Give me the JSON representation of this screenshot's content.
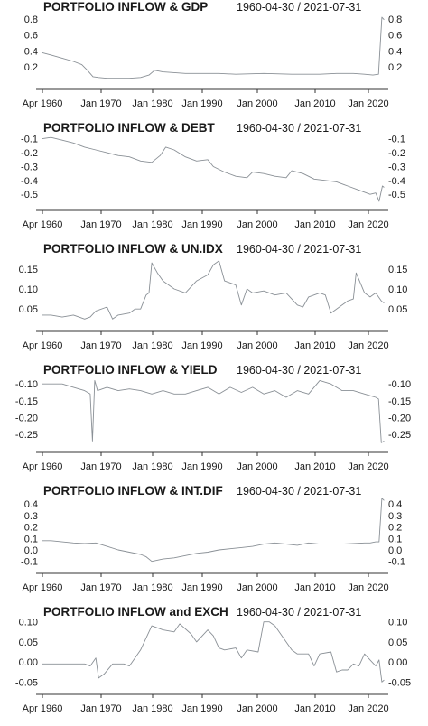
{
  "colors": {
    "series": "#8a9096",
    "axis": "#333333",
    "text": "#1a1a1a"
  },
  "chart_data": [
    {
      "type": "line",
      "title": "PORTFOLIO INFLOW & GDP",
      "date_range": "1960-04-30 / 2021-07-31",
      "x_ticks": [
        "Apr 1960",
        "Jan 1970",
        "Jan 1980",
        "Jan 1990",
        "Jan 2000",
        "Jan 2010",
        "Jan 2020"
      ],
      "y_ticks": [
        "0.8",
        "0.6",
        "0.4",
        "0.2"
      ],
      "ylim": [
        0.0,
        0.9
      ],
      "x": [
        1960.3,
        1962,
        1964,
        1966,
        1967.5,
        1968.5,
        1969.5,
        1970.5,
        1972,
        1974,
        1976,
        1978,
        1979.5,
        1980.5,
        1982,
        1984,
        1986,
        1988,
        1990,
        1992,
        1995,
        2000,
        2005,
        2010,
        2013,
        2016,
        2018,
        2019.5,
        2020.5,
        2021.1,
        2021.5
      ],
      "values": [
        0.38,
        0.35,
        0.31,
        0.27,
        0.23,
        0.16,
        0.08,
        0.07,
        0.06,
        0.06,
        0.06,
        0.07,
        0.1,
        0.16,
        0.14,
        0.13,
        0.12,
        0.12,
        0.12,
        0.12,
        0.11,
        0.12,
        0.11,
        0.11,
        0.12,
        0.12,
        0.11,
        0.1,
        0.11,
        0.82,
        0.79
      ]
    },
    {
      "type": "line",
      "title": "PORTFOLIO INFLOW & DEBT",
      "date_range": "1960-04-30 / 2021-07-31",
      "x_ticks": [
        "Apr 1960",
        "Jan 1970",
        "Jan 1980",
        "Jan 1990",
        "Jan 2000",
        "Jan 2010",
        "Jan 2020"
      ],
      "y_ticks": [
        "-0.1",
        "-0.2",
        "-0.3",
        "-0.4",
        "-0.5"
      ],
      "ylim": [
        -0.57,
        -0.05
      ],
      "x": [
        1960.3,
        1962,
        1964,
        1966,
        1968,
        1970,
        1972,
        1974,
        1976,
        1978,
        1980,
        1981.5,
        1982.5,
        1984,
        1986,
        1988,
        1990,
        1991,
        1993,
        1995,
        1997,
        1998,
        2000,
        2002,
        2004,
        2005,
        2007,
        2009,
        2011,
        2013,
        2015,
        2017,
        2019,
        2020,
        2020.6,
        2021.2,
        2021.5
      ],
      "values": [
        -0.1,
        -0.09,
        -0.11,
        -0.13,
        -0.16,
        -0.18,
        -0.2,
        -0.22,
        -0.23,
        -0.26,
        -0.27,
        -0.22,
        -0.16,
        -0.18,
        -0.23,
        -0.26,
        -0.25,
        -0.3,
        -0.34,
        -0.37,
        -0.38,
        -0.34,
        -0.35,
        -0.37,
        -0.38,
        -0.33,
        -0.35,
        -0.39,
        -0.4,
        -0.41,
        -0.44,
        -0.47,
        -0.5,
        -0.49,
        -0.55,
        -0.44,
        -0.45
      ]
    },
    {
      "type": "line",
      "title": "PORTFOLIO INFLOW & UN.IDX",
      "date_range": "1960-04-30 / 2021-07-31",
      "x_ticks": [
        "Apr 1960",
        "Jan 1970",
        "Jan 1980",
        "Jan 1990",
        "Jan 2000",
        "Jan 2010",
        "Jan 2020"
      ],
      "y_ticks": [
        "0.15",
        "0.10",
        "0.05"
      ],
      "ylim": [
        0.01,
        0.19
      ],
      "x": [
        1960.3,
        1962,
        1964,
        1966,
        1967,
        1968,
        1969,
        1970,
        1972,
        1973,
        1974,
        1976,
        1977,
        1978,
        1979,
        1979.5,
        1980,
        1981,
        1982,
        1984,
        1986,
        1988,
        1990,
        1991,
        1992,
        1993,
        1995,
        1996,
        1997,
        1998,
        2000,
        2002,
        2004,
        2006,
        2007,
        2008,
        2010,
        2011,
        2012,
        2014,
        2015,
        2016,
        2016.5,
        2018,
        2019,
        2020,
        2021,
        2021.5
      ],
      "values": [
        0.035,
        0.035,
        0.03,
        0.035,
        0.03,
        0.025,
        0.03,
        0.045,
        0.055,
        0.025,
        0.035,
        0.04,
        0.05,
        0.05,
        0.085,
        0.09,
        0.165,
        0.14,
        0.12,
        0.1,
        0.09,
        0.12,
        0.135,
        0.16,
        0.17,
        0.12,
        0.11,
        0.06,
        0.1,
        0.09,
        0.095,
        0.085,
        0.09,
        0.06,
        0.055,
        0.08,
        0.09,
        0.085,
        0.04,
        0.06,
        0.07,
        0.075,
        0.14,
        0.09,
        0.08,
        0.09,
        0.07,
        0.065
      ]
    },
    {
      "type": "line",
      "title": "PORTFOLIO INFLOW & YIELD",
      "date_range": "1960-04-30 / 2021-07-31",
      "x_ticks": [
        "Apr 1960",
        "Jan 1970",
        "Jan 1980",
        "Jan 1990",
        "Jan 2000",
        "Jan 2010",
        "Jan 2020"
      ],
      "y_ticks": [
        "-0.10",
        "-0.15",
        "-0.20",
        "-0.25"
      ],
      "ylim": [
        -0.285,
        -0.07
      ],
      "x": [
        1960.3,
        1962,
        1964,
        1966,
        1968,
        1969,
        1969.4,
        1969.8,
        1970.3,
        1972,
        1974,
        1976,
        1978,
        1980,
        1982,
        1984,
        1986,
        1988,
        1990,
        1992,
        1994,
        1996,
        1998,
        2000,
        2002,
        2004,
        2006,
        2008,
        2010,
        2012,
        2014,
        2016,
        2018,
        2019,
        2020,
        2020.5,
        2021,
        2021.5
      ],
      "values": [
        -0.1,
        -0.1,
        -0.1,
        -0.11,
        -0.12,
        -0.13,
        -0.27,
        -0.09,
        -0.12,
        -0.11,
        -0.12,
        -0.115,
        -0.12,
        -0.13,
        -0.12,
        -0.13,
        -0.13,
        -0.12,
        -0.11,
        -0.13,
        -0.11,
        -0.125,
        -0.11,
        -0.13,
        -0.12,
        -0.14,
        -0.12,
        -0.13,
        -0.09,
        -0.1,
        -0.12,
        -0.12,
        -0.13,
        -0.135,
        -0.14,
        -0.145,
        -0.275,
        -0.27
      ]
    },
    {
      "type": "line",
      "title": "PORTFOLIO INFLOW & INT.DIF",
      "date_range": "1960-04-30 / 2021-07-31",
      "x_ticks": [
        "Apr 1960",
        "Jan 1970",
        "Jan 1980",
        "Jan 1990",
        "Jan 2000",
        "Jan 2010",
        "Jan 2020"
      ],
      "y_ticks": [
        "0.4",
        "0.3",
        "0.2",
        "0.1",
        "0.0",
        "-0.1"
      ],
      "ylim": [
        -0.15,
        0.48
      ],
      "x": [
        1960.3,
        1962,
        1964,
        1966,
        1968,
        1970,
        1972,
        1974,
        1976,
        1978,
        1979,
        1980,
        1982,
        1984,
        1986,
        1988,
        1990,
        1992,
        1994,
        1996,
        1998,
        2000,
        2002,
        2004,
        2006,
        2008,
        2010,
        2012,
        2014,
        2016,
        2018,
        2019,
        2020,
        2020.6,
        2021.1,
        2021.5
      ],
      "values": [
        0.08,
        0.08,
        0.07,
        0.06,
        0.055,
        0.06,
        0.03,
        0.0,
        -0.02,
        -0.04,
        -0.06,
        -0.1,
        -0.08,
        -0.07,
        -0.05,
        -0.03,
        -0.02,
        0.0,
        0.01,
        0.02,
        0.03,
        0.05,
        0.06,
        0.05,
        0.04,
        0.06,
        0.05,
        0.05,
        0.05,
        0.055,
        0.06,
        0.06,
        0.07,
        0.07,
        0.45,
        0.43
      ]
    },
    {
      "type": "line",
      "title": "PORTFOLIO INFLOW and EXCH",
      "date_range": "1960-04-30 / 2021-07-31",
      "x_ticks": [
        "Apr 1960",
        "Jan 1970",
        "Jan 1980",
        "Jan 1990",
        "Jan 2000",
        "Jan 2010",
        "Jan 2020"
      ],
      "y_ticks": [
        "0.10",
        "0.05",
        "0.00",
        "-0.05"
      ],
      "ylim": [
        -0.065,
        0.115
      ],
      "x": [
        1960.3,
        1962,
        1964,
        1966,
        1968,
        1969,
        1970,
        1970.5,
        1971.5,
        1973,
        1975,
        1976,
        1977,
        1978,
        1980,
        1982,
        1984,
        1985,
        1987,
        1988,
        1990,
        1991,
        1992,
        1993,
        1995,
        1996,
        1997,
        1999,
        2000,
        2001,
        2002,
        2004,
        2005,
        2006,
        2008,
        2009,
        2010,
        2012,
        2013,
        2014,
        2015,
        2016,
        2017,
        2018,
        2019,
        2020,
        2020.6,
        2021.1,
        2021.5
      ],
      "values": [
        -0.005,
        -0.005,
        -0.005,
        -0.005,
        -0.005,
        -0.01,
        0.01,
        -0.04,
        -0.03,
        -0.005,
        -0.005,
        -0.01,
        0.01,
        0.03,
        0.09,
        0.08,
        0.075,
        0.095,
        0.07,
        0.05,
        0.08,
        0.065,
        0.035,
        0.03,
        0.035,
        0.01,
        0.03,
        0.025,
        0.1,
        0.1,
        0.09,
        0.05,
        0.03,
        0.02,
        0.02,
        -0.01,
        0.02,
        0.025,
        -0.025,
        -0.02,
        -0.02,
        -0.005,
        -0.01,
        0.02,
        0.005,
        -0.01,
        0.005,
        -0.05,
        -0.045
      ]
    }
  ]
}
